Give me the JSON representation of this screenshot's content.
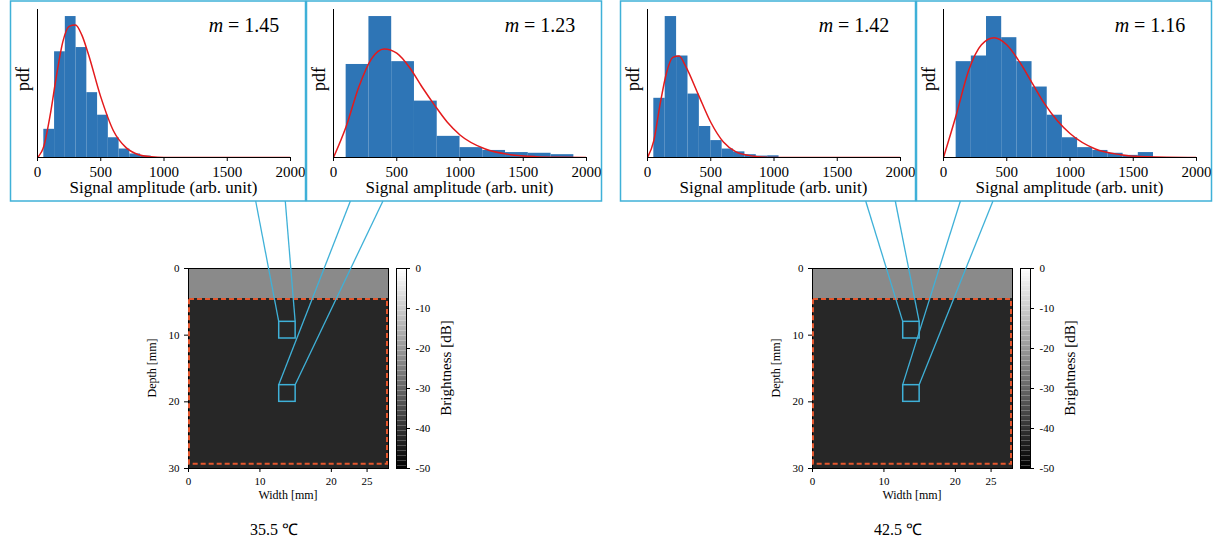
{
  "chart_data": [
    {
      "type": "histogram",
      "x_label": "Signal amplitude (arb. unit)",
      "y_label": "pdf",
      "annotation": "m = 1.45",
      "bins": [
        50,
        135,
        220,
        305,
        390,
        475,
        560,
        645,
        730,
        815,
        900
      ],
      "counts": [
        0.2,
        0.75,
        1.0,
        0.78,
        0.46,
        0.3,
        0.14,
        0.06,
        0.025,
        0.01
      ],
      "color": "#2e75b6",
      "series": [
        {
          "type": "line",
          "color": "#e31a1c",
          "x": [
            0,
            50,
            100,
            150,
            200,
            250,
            300,
            350,
            400,
            500,
            600,
            700,
            800,
            900,
            1000,
            1500,
            2000
          ],
          "values": [
            0,
            0.08,
            0.3,
            0.58,
            0.82,
            0.93,
            0.94,
            0.87,
            0.74,
            0.43,
            0.19,
            0.07,
            0.02,
            0.005,
            0,
            0,
            0
          ]
        }
      ],
      "xlim": [
        0,
        2000
      ],
      "xticks": [
        0,
        500,
        1000,
        1500,
        2000
      ],
      "ylim": [
        0,
        1.05
      ],
      "tick_labels": "x"
    },
    {
      "type": "histogram",
      "x_label": "Signal amplitude (arb. unit)",
      "y_label": "pdf",
      "annotation": "m = 1.23",
      "bins": [
        100,
        280,
        460,
        640,
        820,
        1000,
        1180,
        1360,
        1540,
        1720,
        1900
      ],
      "counts": [
        0.66,
        1.0,
        0.68,
        0.4,
        0.15,
        0.07,
        0.05,
        0.035,
        0.03,
        0.02
      ],
      "color": "#2e75b6",
      "series": [
        {
          "type": "line",
          "color": "#e31a1c",
          "x": [
            0,
            100,
            200,
            300,
            400,
            500,
            600,
            700,
            800,
            900,
            1000,
            1200,
            1400,
            1600,
            1800,
            2000
          ],
          "values": [
            0,
            0.22,
            0.5,
            0.7,
            0.77,
            0.74,
            0.64,
            0.5,
            0.37,
            0.25,
            0.16,
            0.06,
            0.02,
            0.006,
            0.002,
            0
          ]
        }
      ],
      "xlim": [
        0,
        2000
      ],
      "xticks": [
        0,
        500,
        1000,
        1500,
        2000
      ],
      "ylim": [
        0,
        1.05
      ],
      "tick_labels": "x"
    },
    {
      "type": "histogram",
      "x_label": "Signal amplitude (arb. unit)",
      "y_label": "pdf",
      "annotation": "m = 1.42",
      "bins": [
        50,
        140,
        230,
        320,
        410,
        500,
        590,
        680,
        770,
        860,
        950,
        1040
      ],
      "counts": [
        0.42,
        1.0,
        0.72,
        0.45,
        0.22,
        0.12,
        0.06,
        0.04,
        0.02,
        0.01,
        0.012
      ],
      "color": "#2e75b6",
      "series": [
        {
          "type": "line",
          "color": "#e31a1c",
          "x": [
            0,
            50,
            100,
            150,
            200,
            250,
            300,
            400,
            500,
            600,
            700,
            800,
            900,
            1000,
            1500,
            2000
          ],
          "values": [
            0,
            0.12,
            0.38,
            0.6,
            0.71,
            0.72,
            0.65,
            0.45,
            0.25,
            0.11,
            0.04,
            0.015,
            0.004,
            0,
            0,
            0
          ]
        }
      ],
      "xlim": [
        0,
        2000
      ],
      "xticks": [
        0,
        500,
        1000,
        1500,
        2000
      ],
      "ylim": [
        0,
        1.05
      ],
      "tick_labels": "x"
    },
    {
      "type": "histogram",
      "x_label": "Signal amplitude (arb. unit)",
      "y_label": "pdf",
      "annotation": "m = 1.16",
      "bins": [
        100,
        220,
        340,
        460,
        580,
        700,
        820,
        940,
        1060,
        1180,
        1300,
        1420,
        1540,
        1660
      ],
      "counts": [
        0.68,
        0.72,
        1.0,
        0.85,
        0.68,
        0.5,
        0.3,
        0.14,
        0.07,
        0.05,
        0.03,
        0.015,
        0.035
      ],
      "color": "#2e75b6",
      "series": [
        {
          "type": "line",
          "color": "#e31a1c",
          "x": [
            0,
            100,
            200,
            300,
            400,
            500,
            600,
            700,
            800,
            900,
            1000,
            1200,
            1400,
            1600,
            2000
          ],
          "values": [
            0,
            0.3,
            0.62,
            0.8,
            0.85,
            0.8,
            0.68,
            0.53,
            0.38,
            0.26,
            0.17,
            0.06,
            0.02,
            0.005,
            0
          ]
        }
      ],
      "xlim": [
        0,
        2000
      ],
      "xticks": [
        0,
        500,
        1000,
        1500,
        2000
      ],
      "ylim": [
        0,
        1.05
      ],
      "tick_labels": "x"
    },
    {
      "type": "image",
      "caption": "35.5 ℃",
      "x_label": "Width [mm]",
      "y_label": "Depth [mm]",
      "xlim": [
        0,
        28
      ],
      "xticks": [
        0,
        10,
        20,
        25
      ],
      "ylim": [
        0,
        30
      ],
      "yticks": [
        0,
        10,
        20,
        30
      ],
      "colorbar": {
        "label": "Brightness [dB]",
        "lim": [
          -50,
          0
        ],
        "ticks": [
          0,
          -10,
          -20,
          -30,
          -40,
          -50
        ]
      },
      "region": {
        "x": [
          0,
          28
        ],
        "y": [
          4.5,
          29.5
        ],
        "color": "#e4572e",
        "line_style": "dashed"
      },
      "rois": {
        "color": "#3fb1d8",
        "boxes": [
          {
            "x": [
              12.7,
              15
            ],
            "y": [
              8,
              10.5
            ]
          },
          {
            "x": [
              12.7,
              15
            ],
            "y": [
              17.5,
              20
            ]
          }
        ]
      }
    },
    {
      "type": "image",
      "caption": "42.5 ℃",
      "x_label": "Width [mm]",
      "y_label": "Depth [mm]",
      "xlim": [
        0,
        28
      ],
      "xticks": [
        0,
        10,
        20,
        25
      ],
      "ylim": [
        0,
        30
      ],
      "yticks": [
        0,
        10,
        20,
        30
      ],
      "colorbar": {
        "label": "Brightness [dB]",
        "lim": [
          -50,
          0
        ],
        "ticks": [
          0,
          -10,
          -20,
          -30,
          -40,
          -50
        ]
      },
      "region": {
        "x": [
          0,
          28
        ],
        "y": [
          4.5,
          29.5
        ],
        "color": "#e4572e",
        "line_style": "dashed"
      },
      "rois": {
        "color": "#3fb1d8",
        "boxes": [
          {
            "x": [
              12.7,
              15
            ],
            "y": [
              8,
              10.5
            ]
          },
          {
            "x": [
              12.7,
              15
            ],
            "y": [
              17.5,
              20
            ]
          }
        ]
      }
    }
  ]
}
